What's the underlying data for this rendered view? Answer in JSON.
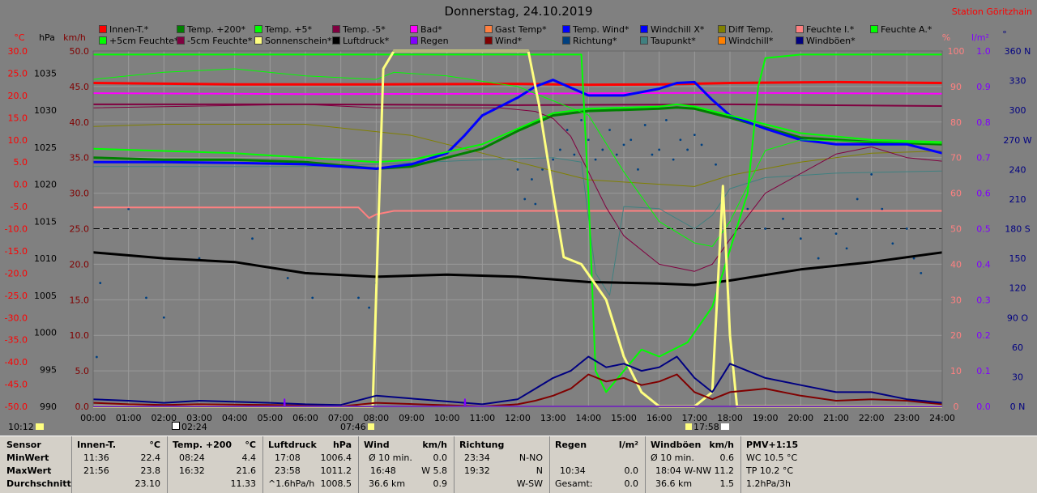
{
  "title": "Donnerstag, 24.10.2019",
  "station": "Station Göritzhain",
  "legend": [
    {
      "label": "Innen-T.*",
      "color": "#ff0000"
    },
    {
      "label": "Temp. +200*",
      "color": "#008000"
    },
    {
      "label": "Temp. +5*",
      "color": "#00ff00"
    },
    {
      "label": "Temp. -5*",
      "color": "#800040"
    },
    {
      "label": "Bad*",
      "color": "#ff00ff"
    },
    {
      "label": "Gast Temp*",
      "color": "#ff8040"
    },
    {
      "label": "Temp. Wind*",
      "color": "#0000ff"
    },
    {
      "label": "Windchill X*",
      "color": "#0000ff"
    },
    {
      "label": "Diff Temp.",
      "color": "#808000"
    },
    {
      "label": "Feuchte I.*",
      "color": "#ff8080"
    },
    {
      "label": "Feuchte A.*",
      "color": "#00ff00"
    },
    {
      "label": "+5cm Feuchte*",
      "color": "#00ff00"
    },
    {
      "label": "-5cm Feuchte*",
      "color": "#800040"
    },
    {
      "label": "Sonnenschein*",
      "color": "#ffff80"
    },
    {
      "label": "Luftdruck*",
      "color": "#000000"
    },
    {
      "label": "Regen",
      "color": "#8000ff"
    },
    {
      "label": "Wind*",
      "color": "#800000"
    },
    {
      "label": "Richtung*",
      "color": "#004080"
    },
    {
      "label": "Taupunkt*",
      "color": "#408080"
    },
    {
      "label": "Windchill*",
      "color": "#ff8000"
    },
    {
      "label": "Windböen*",
      "color": "#000080"
    }
  ],
  "axis_headers": {
    "temp": "°C",
    "hpa": "hPa",
    "kmh": "km/h",
    "pct": "%",
    "lm2": "l/m²",
    "deg": "°"
  },
  "chart_data": {
    "type": "line",
    "title": "Donnerstag, 24.10.2019",
    "x_ticks": [
      "00:00",
      "01:00",
      "02:00",
      "03:00",
      "04:00",
      "05:00",
      "06:00",
      "07:00",
      "08:00",
      "09:00",
      "10:00",
      "11:00",
      "12:00",
      "13:00",
      "14:00",
      "15:00",
      "16:00",
      "17:00",
      "18:00",
      "19:00",
      "20:00",
      "21:00",
      "22:00",
      "23:00",
      "24:00"
    ],
    "xlim": [
      0,
      24
    ],
    "temp_ticks": [
      "30.0",
      "25.0",
      "20.0",
      "15.0",
      "10.0",
      "5.0",
      "0.0",
      "-5.0",
      "-10.0",
      "-15.0",
      "-20.0",
      "-25.0",
      "-30.0",
      "-35.0",
      "-40.0",
      "-45.0",
      "-50.0"
    ],
    "temp_lim": [
      -50,
      30
    ],
    "hpa_ticks": [
      "1035",
      "1030",
      "1025",
      "1020",
      "1015",
      "1010",
      "1005",
      "1000",
      "995",
      "990"
    ],
    "hpa_lim": [
      990,
      1038
    ],
    "kmh_ticks": [
      "50.0",
      "45.0",
      "40.0",
      "35.0",
      "30.0",
      "25.0",
      "20.0",
      "15.0",
      "10.0",
      "5.0",
      "0.0"
    ],
    "kmh_lim": [
      0,
      50
    ],
    "pct_ticks": [
      "100",
      "90",
      "80",
      "70",
      "60",
      "50",
      "40",
      "30",
      "20",
      "10",
      "0"
    ],
    "pct_lim": [
      0,
      100
    ],
    "lm2_ticks": [
      "1.0",
      "0.9",
      "0.8",
      "0.7",
      "0.6",
      "0.5",
      "0.4",
      "0.3",
      "0.2",
      "0.1",
      "0.0"
    ],
    "lm2_lim": [
      0,
      1
    ],
    "deg_ticks": [
      "360 N",
      "330",
      "300",
      "270 W",
      "240",
      "210",
      "180 S",
      "150",
      "120",
      "90 O",
      "60",
      "30",
      "0 N"
    ],
    "deg_lim": [
      0,
      360
    ],
    "series": [
      {
        "name": "Innen-T.*",
        "color": "#ff0000",
        "width": 3,
        "axis": "temp",
        "x": [
          0,
          4,
          8,
          12,
          14,
          16,
          18,
          21,
          24
        ],
        "y": [
          22.8,
          22.5,
          22.5,
          22.6,
          22.4,
          22.5,
          22.8,
          23.0,
          22.8
        ]
      },
      {
        "name": "Bad*",
        "color": "#ff00ff",
        "width": 2,
        "axis": "temp",
        "x": [
          0,
          6,
          12,
          18,
          24
        ],
        "y": [
          20.5,
          20.3,
          20.4,
          20.6,
          20.4
        ]
      },
      {
        "name": "Feuchte I.*",
        "color": "#ff8080",
        "width": 2,
        "axis": "pct",
        "x": [
          0,
          4,
          7.5,
          7.8,
          8,
          8.5,
          12,
          16,
          18,
          21,
          24
        ],
        "y": [
          56,
          56,
          56,
          53,
          54,
          55,
          55,
          55,
          55,
          55,
          55
        ]
      },
      {
        "name": "Temp. -5*",
        "color": "#800040",
        "width": 2,
        "axis": "temp",
        "x": [
          0,
          6,
          12,
          18,
          24
        ],
        "y": [
          18.0,
          18.0,
          17.8,
          18.0,
          17.6
        ]
      },
      {
        "name": "Diff Temp.",
        "color": "#808000",
        "width": 1,
        "axis": "temp",
        "x": [
          0,
          2,
          6,
          9,
          11,
          14,
          16,
          17,
          18,
          20,
          22,
          24
        ],
        "y": [
          13.0,
          13.5,
          13.5,
          11.0,
          7.0,
          1.0,
          0.0,
          -0.5,
          2.0,
          5.0,
          7.0,
          7.5
        ]
      },
      {
        "name": "Taupunkt*",
        "color": "#408080",
        "width": 1,
        "axis": "temp",
        "x": [
          0,
          6,
          8,
          11,
          13,
          13.8,
          14.2,
          14.6,
          15,
          16,
          17,
          17.5,
          18,
          19,
          21,
          24
        ],
        "y": [
          4.0,
          4.0,
          4.5,
          5.5,
          6.0,
          5.0,
          -20.0,
          -25.0,
          -5.0,
          -5.5,
          -10.0,
          -7.0,
          -1.0,
          1.5,
          2.5,
          3.0
        ]
      },
      {
        "name": "Temp. +200*",
        "color": "#008000",
        "width": 3,
        "axis": "temp",
        "x": [
          0,
          2,
          4,
          6,
          8,
          9,
          11,
          12,
          13,
          14,
          16,
          16.5,
          17,
          18,
          20,
          22,
          24
        ],
        "y": [
          6.0,
          5.5,
          5.5,
          5.0,
          3.5,
          4.0,
          8.0,
          12.0,
          15.5,
          16.5,
          17.0,
          17.3,
          17.0,
          15.0,
          10.5,
          9.5,
          9.0
        ]
      },
      {
        "name": "Temp. Wind*",
        "color": "#0000ff",
        "width": 3,
        "axis": "temp",
        "x": [
          0,
          2,
          4,
          6,
          8,
          9,
          10,
          10.5,
          11,
          12,
          12.5,
          13,
          14,
          15,
          16,
          16.5,
          17,
          17.5,
          18,
          19,
          20,
          21,
          22,
          23,
          24
        ],
        "y": [
          5.0,
          5.0,
          4.8,
          4.5,
          3.5,
          4.5,
          7.0,
          11.0,
          15.5,
          19.5,
          22.0,
          23.5,
          20.0,
          20.0,
          21.5,
          22.8,
          23.0,
          19.0,
          15.5,
          12.5,
          10.0,
          9.0,
          9.0,
          9.0,
          7.0
        ]
      },
      {
        "name": "Temp. +5*",
        "color": "#00ff00",
        "width": 2,
        "axis": "temp",
        "x": [
          0,
          2,
          4,
          6,
          8,
          9,
          11,
          12,
          13,
          14,
          16,
          16.5,
          17,
          18,
          20,
          22,
          24
        ],
        "y": [
          8.0,
          7.5,
          7.0,
          6.0,
          5.0,
          5.5,
          9.0,
          12.5,
          16.0,
          17.0,
          17.5,
          18.0,
          17.5,
          15.5,
          11.5,
          10.0,
          9.5
        ]
      },
      {
        "name": "+5cm Feuchte*",
        "color": "#00ff00",
        "width": 1,
        "axis": "pct",
        "x": [
          0,
          2,
          4,
          6,
          8,
          8.5,
          10,
          12,
          13,
          14,
          15,
          16,
          17,
          17.5,
          18,
          19,
          20,
          24
        ],
        "y": [
          92,
          94,
          95,
          93,
          92,
          94,
          93,
          90,
          86,
          82,
          66,
          52,
          46,
          45,
          52,
          72,
          75,
          74
        ]
      },
      {
        "name": "-5cm Feuchte*",
        "color": "#800040",
        "width": 1,
        "axis": "pct",
        "x": [
          0,
          6,
          8,
          10,
          11.5,
          12.5,
          13,
          13.5,
          14.5,
          15,
          16,
          17,
          17.5,
          18,
          19,
          21,
          22,
          23,
          24
        ],
        "y": [
          84,
          85,
          84,
          84,
          84,
          83,
          81,
          76,
          56,
          48,
          40,
          38,
          40,
          47,
          60,
          71,
          73,
          70,
          69
        ]
      },
      {
        "name": "Luftdruck*",
        "color": "#000000",
        "width": 3,
        "axis": "hpa",
        "x": [
          0,
          2,
          4,
          6,
          8,
          10,
          12,
          14,
          16,
          17,
          18,
          20,
          22,
          24
        ],
        "y": [
          1010.8,
          1010.0,
          1009.5,
          1008.0,
          1007.5,
          1007.8,
          1007.5,
          1006.8,
          1006.6,
          1006.4,
          1007.0,
          1008.5,
          1009.5,
          1010.8
        ]
      },
      {
        "name": "Feuchte A.*",
        "color": "#00ff00",
        "width": 2,
        "axis": "pct",
        "x": [
          0,
          8,
          12,
          13.8,
          14,
          14.2,
          14.5,
          15,
          15.5,
          16,
          16.8,
          17.5,
          18.5,
          18.8,
          19,
          20,
          24
        ],
        "y": [
          99,
          99,
          99,
          99,
          60,
          10,
          4,
          10,
          16,
          14,
          18,
          28,
          60,
          90,
          98,
          99,
          99
        ]
      },
      {
        "name": "Sonnenschein*",
        "color": "#ffff80",
        "width": 3,
        "axis": "pct",
        "x": [
          0,
          7.9,
          8.2,
          8.5,
          12.3,
          12.6,
          13.0,
          13.3,
          13.8,
          14.5,
          15,
          15.5,
          16,
          17.0,
          17.5,
          17.8,
          18.0,
          18.2,
          24
        ],
        "y": [
          0,
          0,
          95,
          100,
          100,
          85,
          60,
          42,
          40,
          30,
          14,
          4,
          0,
          0,
          4,
          62,
          20,
          0,
          0
        ]
      },
      {
        "name": "Wind*",
        "color": "#800000",
        "width": 2,
        "axis": "kmh",
        "x": [
          0,
          1,
          2,
          3,
          5,
          6,
          7,
          8,
          11,
          12,
          12.5,
          13,
          13.5,
          14,
          14.5,
          15,
          15.5,
          16,
          16.5,
          17,
          17.5,
          18,
          19,
          20,
          21,
          22,
          23,
          24
        ],
        "y": [
          0.5,
          0.3,
          0.2,
          0.3,
          0.2,
          0.1,
          0,
          0.5,
          0,
          0.3,
          0.8,
          1.5,
          2.5,
          4.5,
          3.5,
          4.0,
          3.0,
          3.5,
          4.5,
          2.0,
          1.0,
          2.0,
          2.5,
          1.5,
          0.8,
          1.0,
          0.8,
          0.3
        ]
      },
      {
        "name": "Windböen*",
        "color": "#000080",
        "width": 2,
        "axis": "kmh",
        "x": [
          0,
          1,
          2,
          3,
          5,
          6,
          7,
          8,
          11,
          12,
          12.5,
          13,
          13.5,
          14,
          14.5,
          15,
          15.5,
          16,
          16.5,
          17,
          17.5,
          18,
          19,
          20,
          21,
          22,
          23,
          24
        ],
        "y": [
          1.0,
          0.8,
          0.5,
          0.8,
          0.5,
          0.3,
          0.2,
          1.5,
          0.3,
          1.0,
          2.5,
          4.0,
          5.0,
          7.0,
          5.5,
          6.0,
          5.0,
          5.5,
          7.0,
          4.0,
          2.0,
          6.0,
          4.0,
          3.0,
          2.0,
          2.0,
          1.0,
          0.5
        ]
      },
      {
        "name": "Regen",
        "color": "#8000ff",
        "width": 2,
        "axis": "lm2",
        "x": [
          0,
          5.4,
          5.41,
          5.42,
          10.5,
          10.51,
          10.52,
          24
        ],
        "y": [
          0,
          0,
          0.02,
          0,
          0,
          0.02,
          0,
          0
        ]
      }
    ],
    "direction_points": {
      "name": "Richtung*",
      "color": "#004080",
      "axis": "deg",
      "x": [
        0.1,
        0.2,
        1.0,
        1.5,
        2.0,
        3.0,
        4.5,
        5.5,
        6.2,
        7.5,
        7.8,
        8.0,
        12.0,
        12.2,
        12.4,
        12.5,
        12.7,
        13.0,
        13.2,
        13.4,
        13.6,
        13.8,
        14.0,
        14.2,
        14.4,
        14.6,
        14.8,
        15.0,
        15.2,
        15.4,
        15.6,
        15.8,
        16.0,
        16.2,
        16.4,
        16.6,
        16.8,
        17.0,
        17.2,
        17.6,
        18.5,
        19.0,
        19.5,
        20.0,
        20.5,
        21.0,
        21.3,
        21.6,
        22.0,
        22.3,
        22.6,
        23.0,
        23.2,
        23.4
      ],
      "y": [
        50,
        125,
        200,
        110,
        90,
        150,
        170,
        130,
        110,
        110,
        100,
        125,
        240,
        210,
        230,
        205,
        240,
        250,
        260,
        280,
        255,
        290,
        270,
        250,
        260,
        280,
        255,
        265,
        270,
        240,
        285,
        255,
        260,
        290,
        250,
        270,
        260,
        275,
        265,
        245,
        200,
        180,
        190,
        170,
        150,
        175,
        160,
        210,
        235,
        200,
        165,
        180,
        150,
        135
      ]
    },
    "bottom_labels": [
      "10:12",
      "02:24",
      "07:46",
      "17:58"
    ]
  },
  "stats": {
    "col1": {
      "h1": "Sensor",
      "rows": [
        "MinWert",
        "MaxWert",
        "Durchschnitt"
      ]
    },
    "col2": {
      "h1": "Innen-T.",
      "h2": "°C",
      "rows": [
        [
          "11:36",
          "22.4"
        ],
        [
          "21:56",
          "23.8"
        ],
        [
          "",
          "23.10"
        ]
      ]
    },
    "col3": {
      "h1": "Temp. +200",
      "h2": "°C",
      "rows": [
        [
          "08:24",
          "4.4"
        ],
        [
          "16:32",
          "21.6"
        ],
        [
          "",
          "11.33"
        ]
      ]
    },
    "col4": {
      "h1": "Luftdruck",
      "h2": "hPa",
      "rows": [
        [
          "17:08",
          "1006.4"
        ],
        [
          "23:58",
          "1011.2"
        ],
        [
          "^1.6hPa/h",
          "1008.5"
        ]
      ]
    },
    "col5": {
      "h1": "Wind",
      "h2": "km/h",
      "rows": [
        [
          "Ø 10 min.",
          "0.0"
        ],
        [
          "16:48",
          "W 5.8"
        ],
        [
          "36.6 km",
          "0.9"
        ]
      ]
    },
    "col6": {
      "h1": "Richtung",
      "h2": "",
      "rows": [
        [
          "23:34",
          "N-NO"
        ],
        [
          "19:32",
          "N"
        ],
        [
          "",
          "W-SW"
        ]
      ]
    },
    "col7": {
      "h1": "Regen",
      "h2": "l/m²",
      "rows": [
        [
          "",
          ""
        ],
        [
          "10:34",
          "0.0"
        ],
        [
          "Gesamt:",
          "0.0"
        ]
      ]
    },
    "col8": {
      "h1": "Windböen",
      "h2": "km/h",
      "rows": [
        [
          "Ø 10 min.",
          "0.6"
        ],
        [
          "18:04",
          "W-NW 11.2"
        ],
        [
          "36.6 km",
          "1.5"
        ]
      ]
    },
    "col9": {
      "h1": "PMV+1:15",
      "rows": [
        "WC 10.5 °C",
        "TP 10.2 °C",
        "1.2hPa/3h"
      ]
    }
  }
}
